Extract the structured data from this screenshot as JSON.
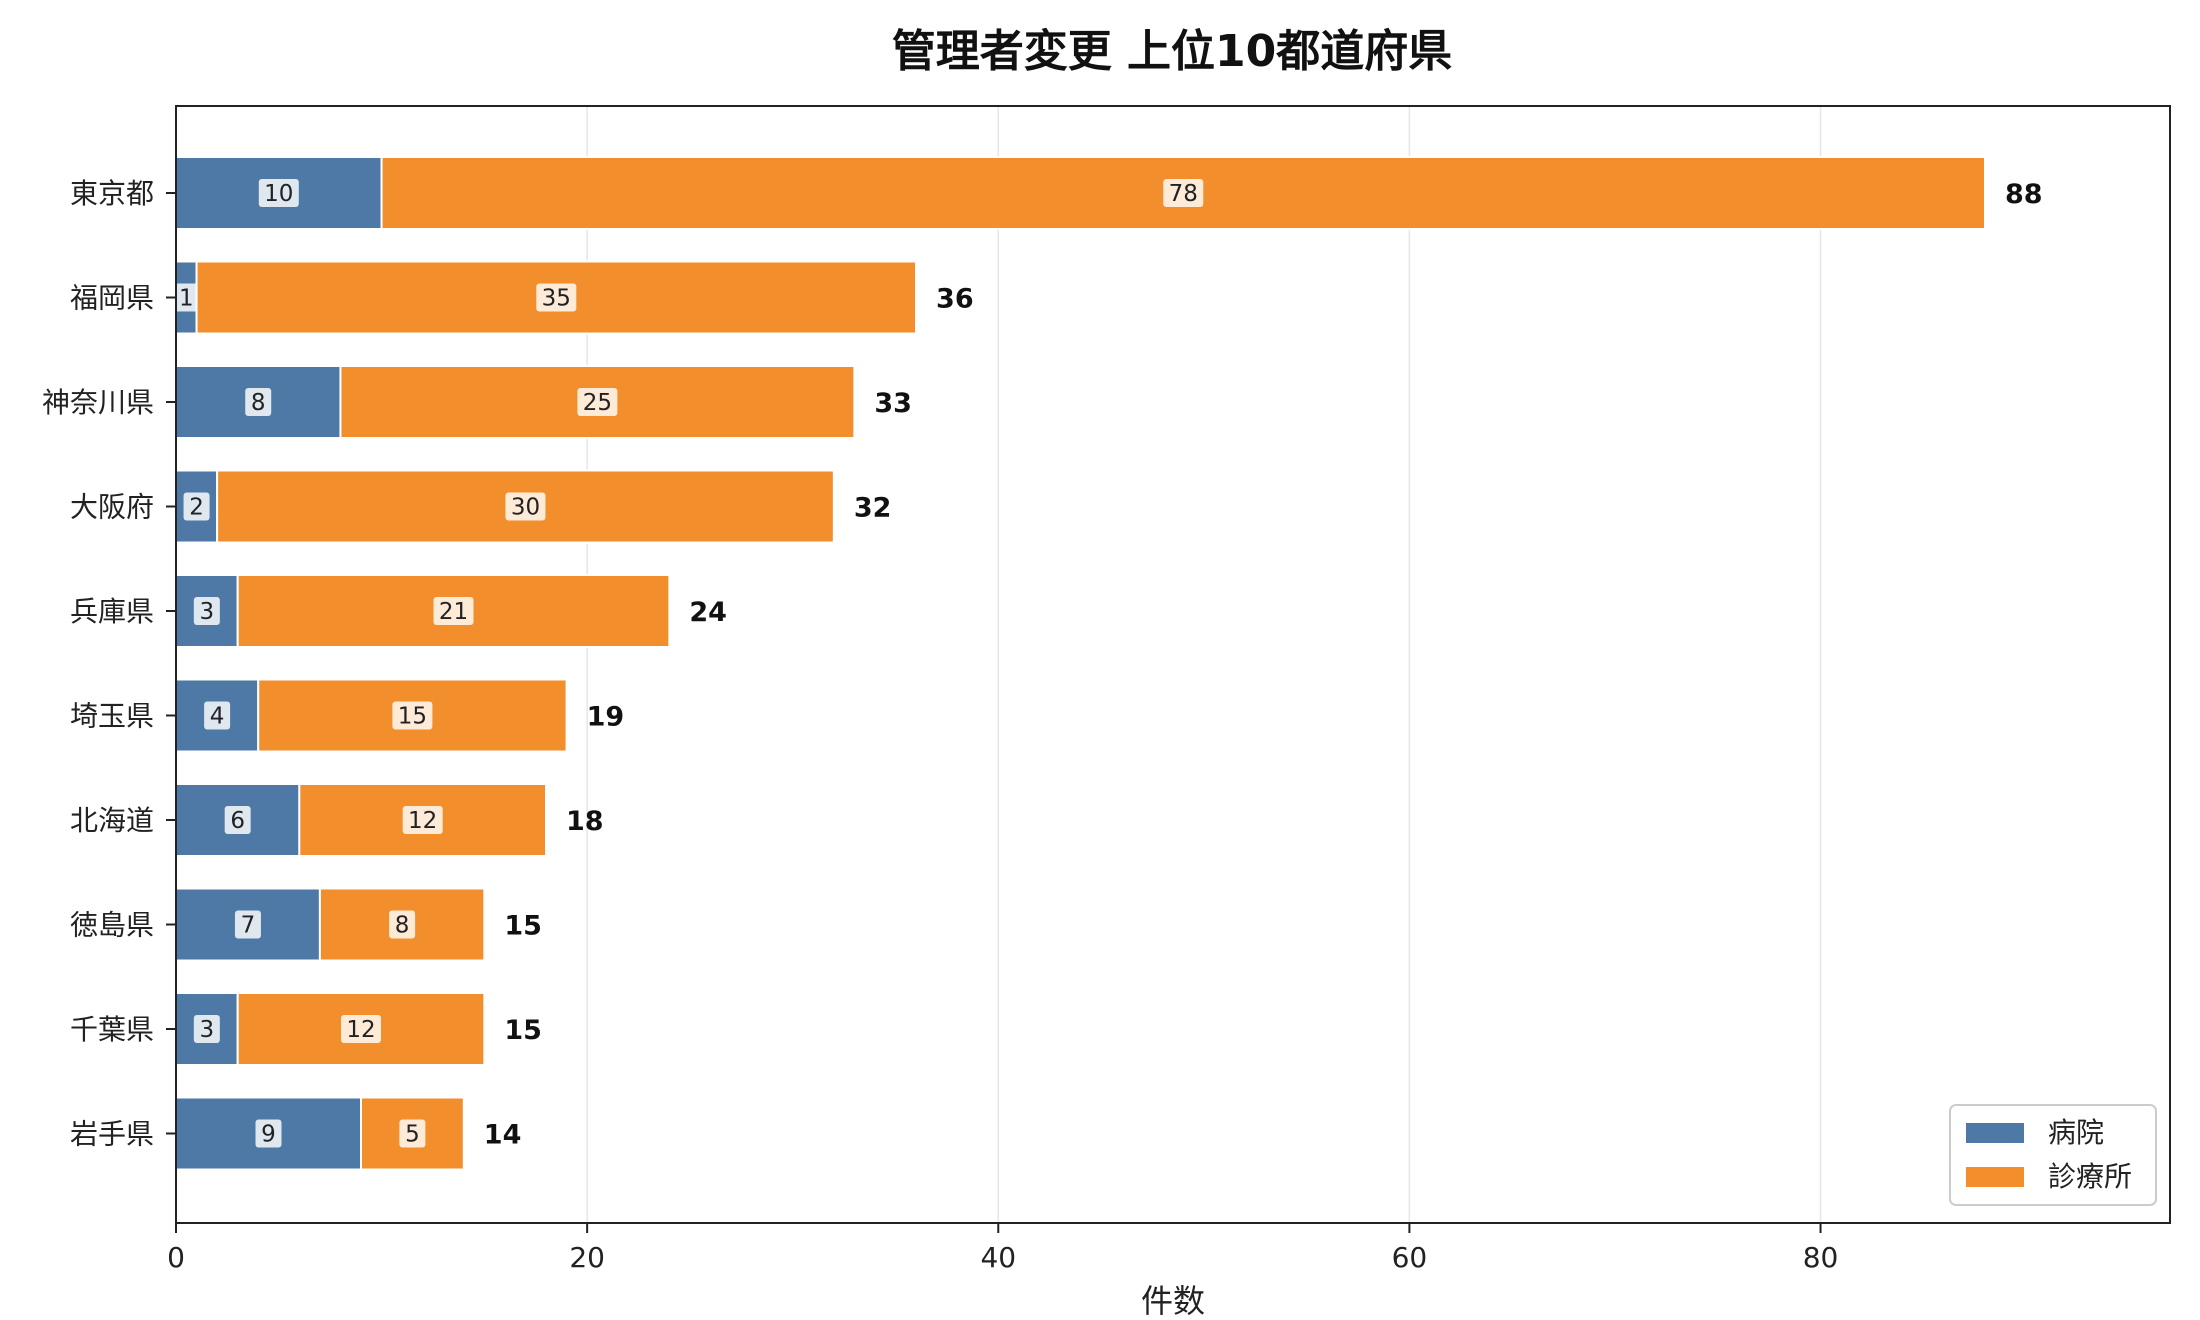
{
  "chart_data": {
    "type": "bar",
    "orientation": "horizontal",
    "stacked": true,
    "title": "管理者変更 上位10都道府県",
    "xlabel": "件数",
    "ylabel": "",
    "xlim": [
      0,
      97
    ],
    "xticks": [
      0,
      20,
      40,
      60,
      80
    ],
    "grid": "x",
    "legend_position": "lower-right",
    "categories": [
      "東京都",
      "福岡県",
      "神奈川県",
      "大阪府",
      "兵庫県",
      "埼玉県",
      "北海道",
      "徳島県",
      "千葉県",
      "岩手県"
    ],
    "series": [
      {
        "name": "病院",
        "color": "#4e79a7",
        "values": [
          10,
          1,
          8,
          2,
          3,
          4,
          6,
          7,
          3,
          9
        ]
      },
      {
        "name": "診療所",
        "color": "#f28e2b",
        "values": [
          78,
          35,
          25,
          30,
          21,
          15,
          12,
          8,
          12,
          5
        ]
      }
    ],
    "totals": [
      88,
      36,
      33,
      32,
      24,
      19,
      18,
      15,
      15,
      14
    ]
  }
}
